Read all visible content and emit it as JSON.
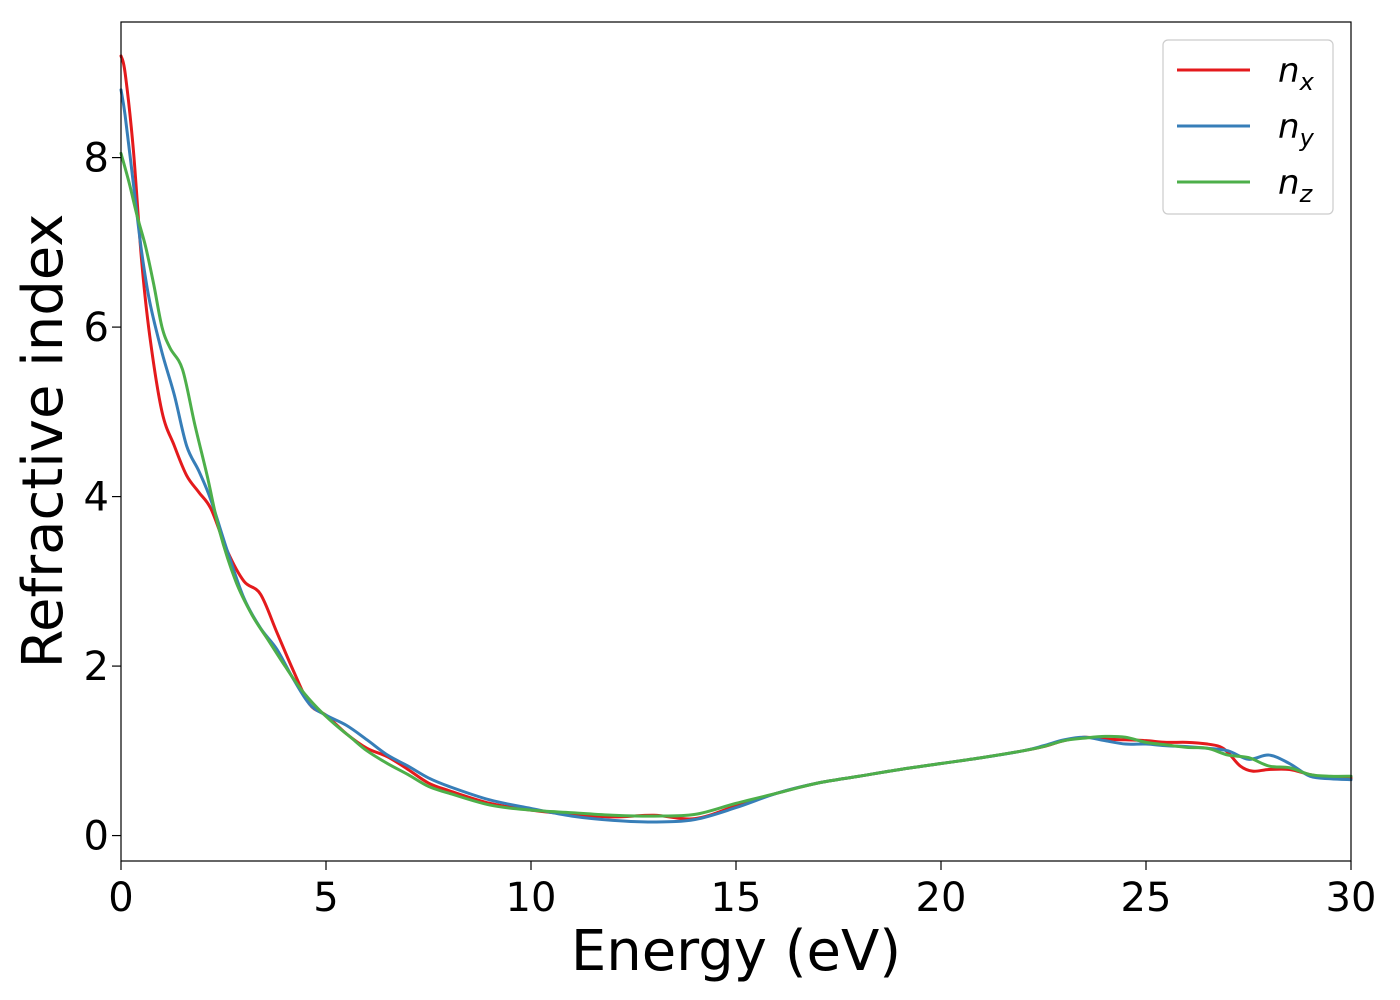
{
  "chart_data": {
    "type": "line",
    "xlabel": "Energy (eV)",
    "ylabel": "Refractive index",
    "xlim": [
      0,
      30
    ],
    "ylim": [
      -0.3,
      9.6
    ],
    "xticks": [
      0,
      5,
      10,
      15,
      20,
      25,
      30
    ],
    "yticks": [
      0,
      2,
      4,
      6,
      8
    ],
    "legend_position": "top-right",
    "grid": false,
    "series": [
      {
        "name": "n",
        "subscript": "x",
        "color": "#e41a1c",
        "x": [
          0,
          0.1,
          0.3,
          0.5,
          0.7,
          1.0,
          1.3,
          1.6,
          1.9,
          2.2,
          2.6,
          3.0,
          3.4,
          3.8,
          4.2,
          4.6,
          5.0,
          5.5,
          6.0,
          6.5,
          7.0,
          7.5,
          8.0,
          9.0,
          10.0,
          11.0,
          12.0,
          13.0,
          14.0,
          15.0,
          16.0,
          17.0,
          18.0,
          19.0,
          20.0,
          21.0,
          22.0,
          22.5,
          23.0,
          23.5,
          24.0,
          24.5,
          25.0,
          25.5,
          26.0,
          26.5,
          26.8,
          27.0,
          27.3,
          27.6,
          28.0,
          28.5,
          29.0,
          29.5,
          30.0
        ],
        "values": [
          9.2,
          9.0,
          8.1,
          6.8,
          5.9,
          5.0,
          4.6,
          4.25,
          4.05,
          3.85,
          3.35,
          3.0,
          2.85,
          2.4,
          1.95,
          1.55,
          1.42,
          1.2,
          1.03,
          0.93,
          0.78,
          0.62,
          0.53,
          0.38,
          0.3,
          0.25,
          0.22,
          0.24,
          0.2,
          0.35,
          0.5,
          0.62,
          0.7,
          0.78,
          0.85,
          0.92,
          1.0,
          1.05,
          1.12,
          1.16,
          1.14,
          1.13,
          1.12,
          1.1,
          1.1,
          1.08,
          1.05,
          0.98,
          0.82,
          0.76,
          0.78,
          0.78,
          0.72,
          0.68,
          0.68
        ]
      },
      {
        "name": "n",
        "subscript": "y",
        "color": "#377eb8",
        "x": [
          0,
          0.1,
          0.3,
          0.5,
          0.7,
          1.0,
          1.3,
          1.6,
          1.9,
          2.2,
          2.6,
          3.0,
          3.4,
          3.8,
          4.2,
          4.6,
          5.0,
          5.5,
          6.0,
          6.5,
          7.0,
          7.5,
          8.0,
          9.0,
          10.0,
          11.0,
          12.0,
          13.0,
          14.0,
          15.0,
          16.0,
          17.0,
          18.0,
          19.0,
          20.0,
          21.0,
          22.0,
          22.5,
          23.0,
          23.5,
          24.0,
          24.5,
          25.0,
          25.5,
          26.0,
          26.5,
          27.0,
          27.5,
          28.0,
          28.5,
          29.0,
          29.5,
          30.0
        ],
        "values": [
          8.8,
          8.5,
          7.7,
          6.9,
          6.3,
          5.7,
          5.2,
          4.6,
          4.3,
          3.95,
          3.35,
          2.8,
          2.45,
          2.2,
          1.85,
          1.55,
          1.42,
          1.3,
          1.13,
          0.95,
          0.82,
          0.68,
          0.58,
          0.42,
          0.32,
          0.23,
          0.18,
          0.16,
          0.19,
          0.33,
          0.5,
          0.62,
          0.7,
          0.78,
          0.85,
          0.92,
          1.0,
          1.06,
          1.13,
          1.16,
          1.12,
          1.08,
          1.08,
          1.06,
          1.05,
          1.03,
          1.0,
          0.9,
          0.95,
          0.85,
          0.7,
          0.67,
          0.66
        ]
      },
      {
        "name": "n",
        "subscript": "z",
        "color": "#4daf4a",
        "x": [
          0,
          0.2,
          0.4,
          0.6,
          0.8,
          1.0,
          1.2,
          1.5,
          1.8,
          2.1,
          2.4,
          2.8,
          3.2,
          3.6,
          4.0,
          4.4,
          4.8,
          5.2,
          5.6,
          6.0,
          6.5,
          7.0,
          7.5,
          8.0,
          9.0,
          10.0,
          11.0,
          12.0,
          13.0,
          14.0,
          15.0,
          16.0,
          17.0,
          18.0,
          19.0,
          20.0,
          21.0,
          22.0,
          22.5,
          23.0,
          23.5,
          24.0,
          24.5,
          25.0,
          25.5,
          26.0,
          26.5,
          27.0,
          27.5,
          28.0,
          28.5,
          29.0,
          29.5,
          30.0
        ],
        "values": [
          8.05,
          7.7,
          7.3,
          6.95,
          6.5,
          6.0,
          5.75,
          5.5,
          4.85,
          4.25,
          3.6,
          3.0,
          2.6,
          2.3,
          2.0,
          1.72,
          1.5,
          1.32,
          1.16,
          1.0,
          0.85,
          0.72,
          0.58,
          0.5,
          0.36,
          0.3,
          0.27,
          0.24,
          0.23,
          0.25,
          0.38,
          0.5,
          0.62,
          0.7,
          0.78,
          0.85,
          0.92,
          1.0,
          1.05,
          1.12,
          1.15,
          1.17,
          1.16,
          1.1,
          1.07,
          1.04,
          1.03,
          0.95,
          0.92,
          0.82,
          0.8,
          0.72,
          0.7,
          0.7
        ]
      }
    ]
  }
}
